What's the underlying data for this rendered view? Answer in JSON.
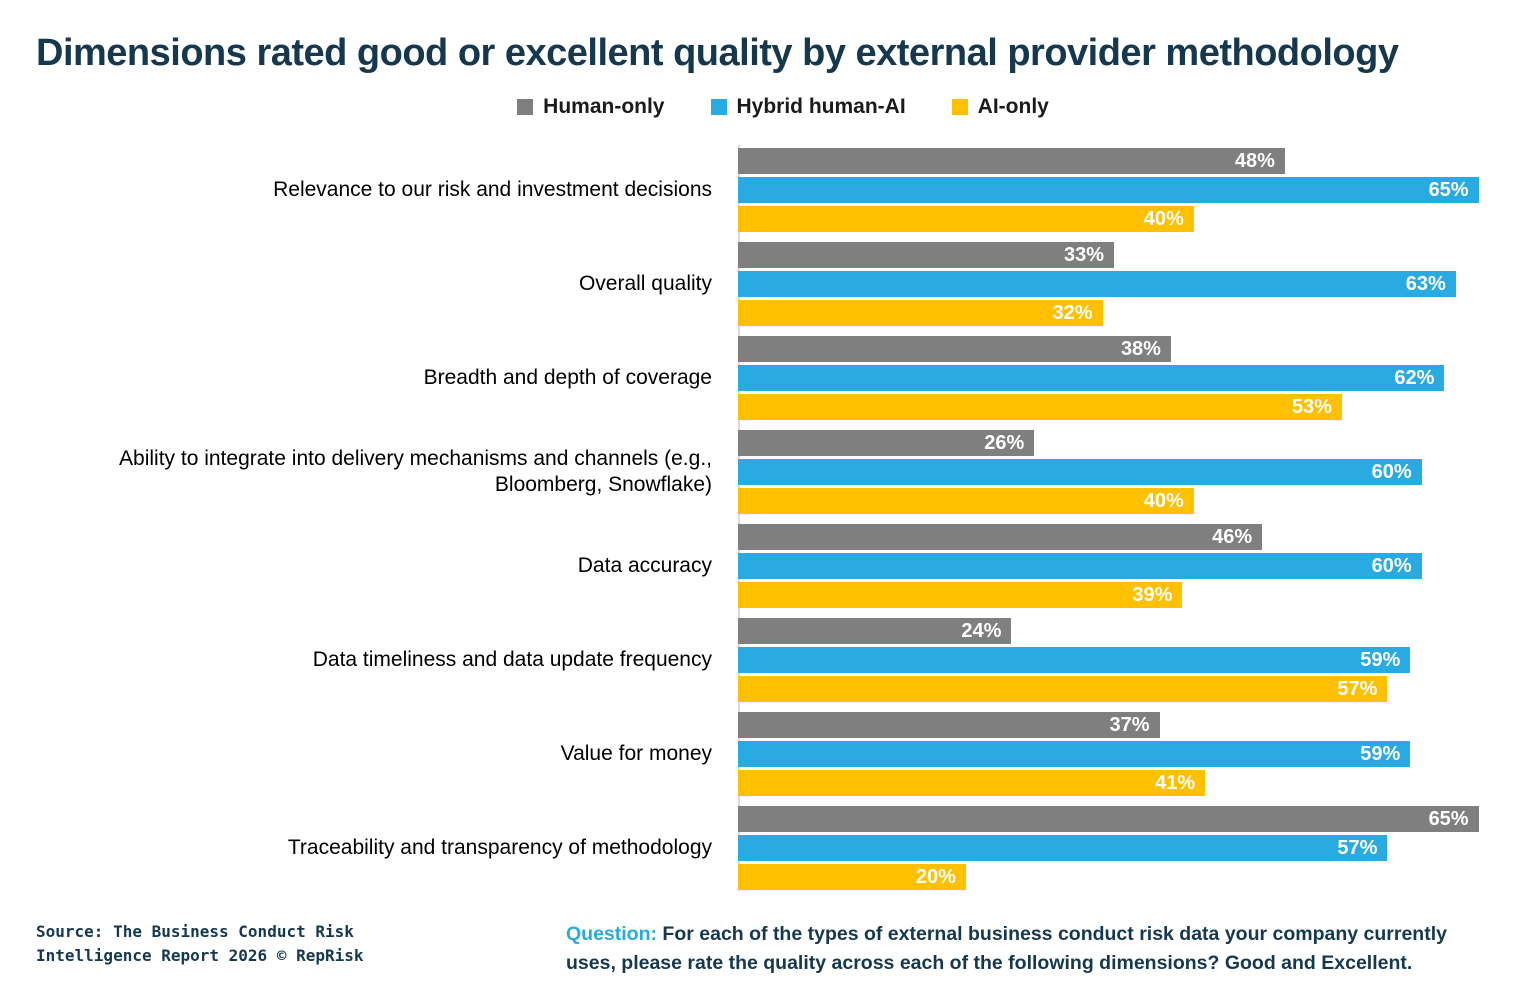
{
  "chart_data": {
    "type": "bar",
    "orientation": "horizontal",
    "title": "Dimensions rated good or excellent quality by external provider methodology",
    "categories": [
      "Relevance to our risk and investment decisions",
      "Overall quality",
      "Breadth and depth of coverage",
      "Ability to integrate into delivery mechanisms and channels (e.g., Bloomberg, Snowflake)",
      "Data accuracy",
      "Data timeliness and data update frequency",
      "Value for money",
      "Traceability and transparency of methodology"
    ],
    "series": [
      {
        "name": "Human-only",
        "color": "#7F7F7F",
        "values": [
          48,
          33,
          38,
          26,
          46,
          24,
          37,
          65
        ]
      },
      {
        "name": "Hybrid human-AI",
        "color": "#29ABE2",
        "values": [
          65,
          63,
          62,
          60,
          60,
          59,
          59,
          57
        ]
      },
      {
        "name": "AI-only",
        "color": "#FFC000",
        "values": [
          40,
          32,
          53,
          40,
          39,
          57,
          41,
          20
        ]
      }
    ],
    "value_suffix": "%",
    "xlim": [
      0,
      66
    ],
    "grid": false,
    "legend_position": "top",
    "value_labels": "inside-end"
  },
  "footer": {
    "source_line1": "Source: The Business Conduct Risk",
    "source_line2": "Intelligence Report 2026 © RepRisk",
    "question_label": "Question:",
    "question_text": "For each of the types of external business conduct risk data your company currently uses, please rate the quality across each of the following dimensions?",
    "question_bold": "Good and Excellent."
  }
}
